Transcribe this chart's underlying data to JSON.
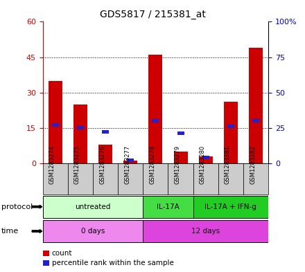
{
  "title": "GDS5817 / 215381_at",
  "samples": [
    "GSM1283274",
    "GSM1283275",
    "GSM1283276",
    "GSM1283277",
    "GSM1283278",
    "GSM1283279",
    "GSM1283280",
    "GSM1283281",
    "GSM1283282"
  ],
  "count_values": [
    35,
    25,
    8,
    1,
    46,
    5,
    3,
    26,
    49
  ],
  "percentile_values": [
    27,
    25,
    22,
    2,
    30,
    21,
    4,
    26,
    30
  ],
  "ylim_left": [
    0,
    60
  ],
  "ylim_right": [
    0,
    100
  ],
  "yticks_left": [
    0,
    15,
    30,
    45,
    60
  ],
  "yticks_right": [
    0,
    25,
    50,
    75,
    100
  ],
  "ytick_labels_left": [
    "0",
    "15",
    "30",
    "45",
    "60"
  ],
  "ytick_labels_right": [
    "0",
    "25",
    "50",
    "75",
    "100%"
  ],
  "bar_color": "#cc0000",
  "percentile_color": "#2222cc",
  "protocol_groups": [
    {
      "label": "untreated",
      "start": 0,
      "end": 4,
      "color": "#ccffcc"
    },
    {
      "label": "IL-17A",
      "start": 4,
      "end": 6,
      "color": "#44dd44"
    },
    {
      "label": "IL-17A + IFN-g",
      "start": 6,
      "end": 9,
      "color": "#22cc22"
    }
  ],
  "time_groups": [
    {
      "label": "0 days",
      "start": 0,
      "end": 4,
      "color": "#ee88ee"
    },
    {
      "label": "12 days",
      "start": 4,
      "end": 9,
      "color": "#dd44dd"
    }
  ],
  "protocol_row_label": "protocol",
  "time_row_label": "time",
  "legend_count_label": "count",
  "legend_percentile_label": "percentile rank within the sample",
  "bg_color": "#ffffff",
  "tick_label_color_left": "#cc0000",
  "tick_label_color_right": "#0000cc",
  "sample_box_color": "#cccccc",
  "hgrid_vals": [
    15,
    30,
    45
  ]
}
